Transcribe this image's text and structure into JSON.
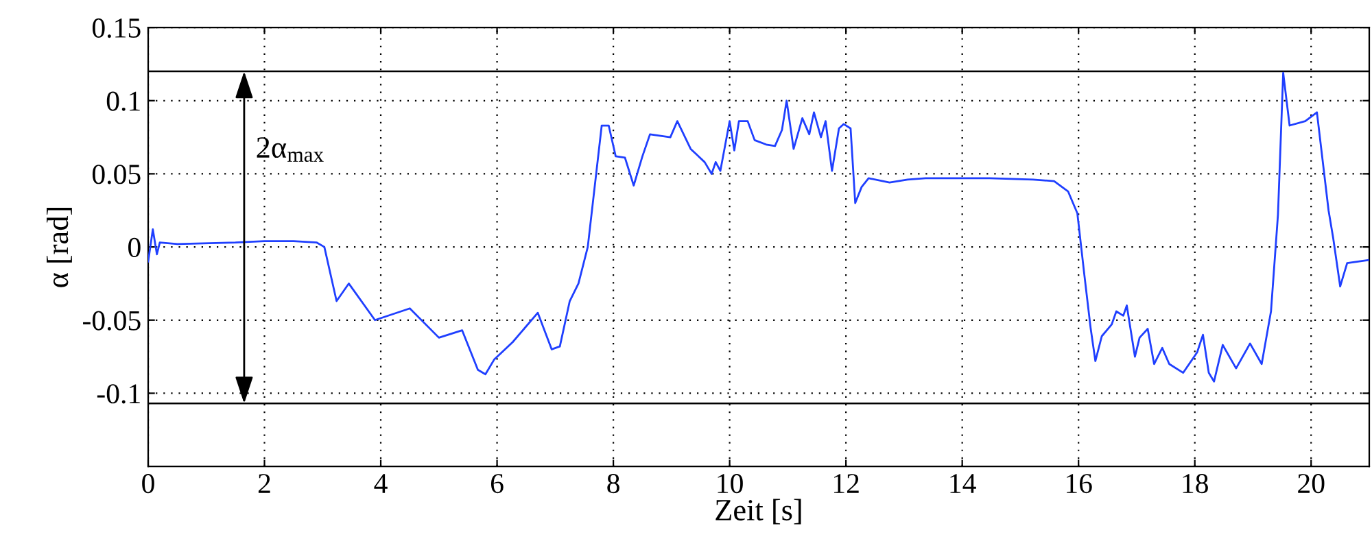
{
  "chart_data": {
    "type": "line",
    "xlabel": "Zeit [s]",
    "ylabel": "α [rad]",
    "xlim": [
      0,
      21
    ],
    "ylim": [
      -0.15,
      0.15
    ],
    "xticks": [
      0,
      2,
      4,
      6,
      8,
      10,
      12,
      14,
      16,
      18,
      20
    ],
    "yticks": [
      {
        "value": -0.1,
        "label": "-0.1"
      },
      {
        "value": -0.05,
        "label": "-0.05"
      },
      0,
      0.05,
      0.1,
      0.15
    ],
    "grid": true,
    "line_style": "solid",
    "marker": "none",
    "ref_lines": [
      {
        "axis": "y",
        "value": 0.12,
        "color": "#000000"
      },
      {
        "axis": "y",
        "value": -0.107,
        "color": "#000000"
      }
    ],
    "annotations": [
      "2α$_{max}$"
    ],
    "series": [
      {
        "color": "#1f3fff",
        "x": [
          0,
          0.08,
          0.15,
          0.2,
          0.5,
          1.5,
          2.0,
          2.5,
          2.9,
          3.03,
          3.24,
          3.45,
          3.9,
          4.5,
          5.0,
          5.4,
          5.67,
          5.8,
          5.95,
          6.27,
          6.7,
          6.94,
          7.08,
          7.25,
          7.4,
          7.56,
          7.8,
          7.92,
          8.04,
          8.2,
          8.35,
          8.5,
          8.63,
          8.98,
          9.1,
          9.33,
          9.57,
          9.69,
          9.76,
          9.84,
          10.0,
          10.08,
          10.16,
          10.31,
          10.43,
          10.63,
          10.78,
          10.9,
          10.98,
          11.1,
          11.25,
          11.37,
          11.45,
          11.57,
          11.65,
          11.76,
          11.88,
          11.96,
          12.08,
          12.16,
          12.27,
          12.39,
          12.75,
          13.06,
          13.37,
          14.47,
          15.22,
          15.58,
          15.82,
          15.98,
          16.1,
          16.21,
          16.29,
          16.4,
          16.57,
          16.65,
          16.77,
          16.83,
          16.97,
          17.05,
          17.19,
          17.3,
          17.44,
          17.56,
          17.8,
          18.04,
          18.14,
          18.24,
          18.33,
          18.48,
          18.71,
          18.95,
          19.15,
          19.31,
          19.43,
          19.52,
          19.63,
          19.9,
          20.1,
          20.3,
          20.38,
          20.5,
          20.62,
          20.98
        ],
        "values": [
          -0.01,
          0.012,
          -0.005,
          0.003,
          0.002,
          0.003,
          0.004,
          0.004,
          0.003,
          0.0,
          -0.037,
          -0.025,
          -0.05,
          -0.042,
          -0.062,
          -0.057,
          -0.084,
          -0.087,
          -0.077,
          -0.065,
          -0.045,
          -0.07,
          -0.068,
          -0.037,
          -0.025,
          0.0,
          0.083,
          0.083,
          0.062,
          0.061,
          0.042,
          0.062,
          0.077,
          0.075,
          0.086,
          0.067,
          0.058,
          0.05,
          0.058,
          0.052,
          0.086,
          0.066,
          0.086,
          0.086,
          0.073,
          0.07,
          0.069,
          0.08,
          0.1,
          0.067,
          0.088,
          0.077,
          0.092,
          0.075,
          0.086,
          0.052,
          0.081,
          0.084,
          0.081,
          0.03,
          0.041,
          0.047,
          0.044,
          0.046,
          0.047,
          0.047,
          0.046,
          0.045,
          0.038,
          0.023,
          -0.019,
          -0.056,
          -0.078,
          -0.061,
          -0.053,
          -0.044,
          -0.047,
          -0.04,
          -0.075,
          -0.062,
          -0.056,
          -0.08,
          -0.069,
          -0.08,
          -0.086,
          -0.072,
          -0.06,
          -0.086,
          -0.092,
          -0.067,
          -0.083,
          -0.066,
          -0.08,
          -0.044,
          0.022,
          0.119,
          0.083,
          0.086,
          0.092,
          0.025,
          0.006,
          -0.027,
          -0.011,
          -0.009
        ]
      }
    ]
  }
}
